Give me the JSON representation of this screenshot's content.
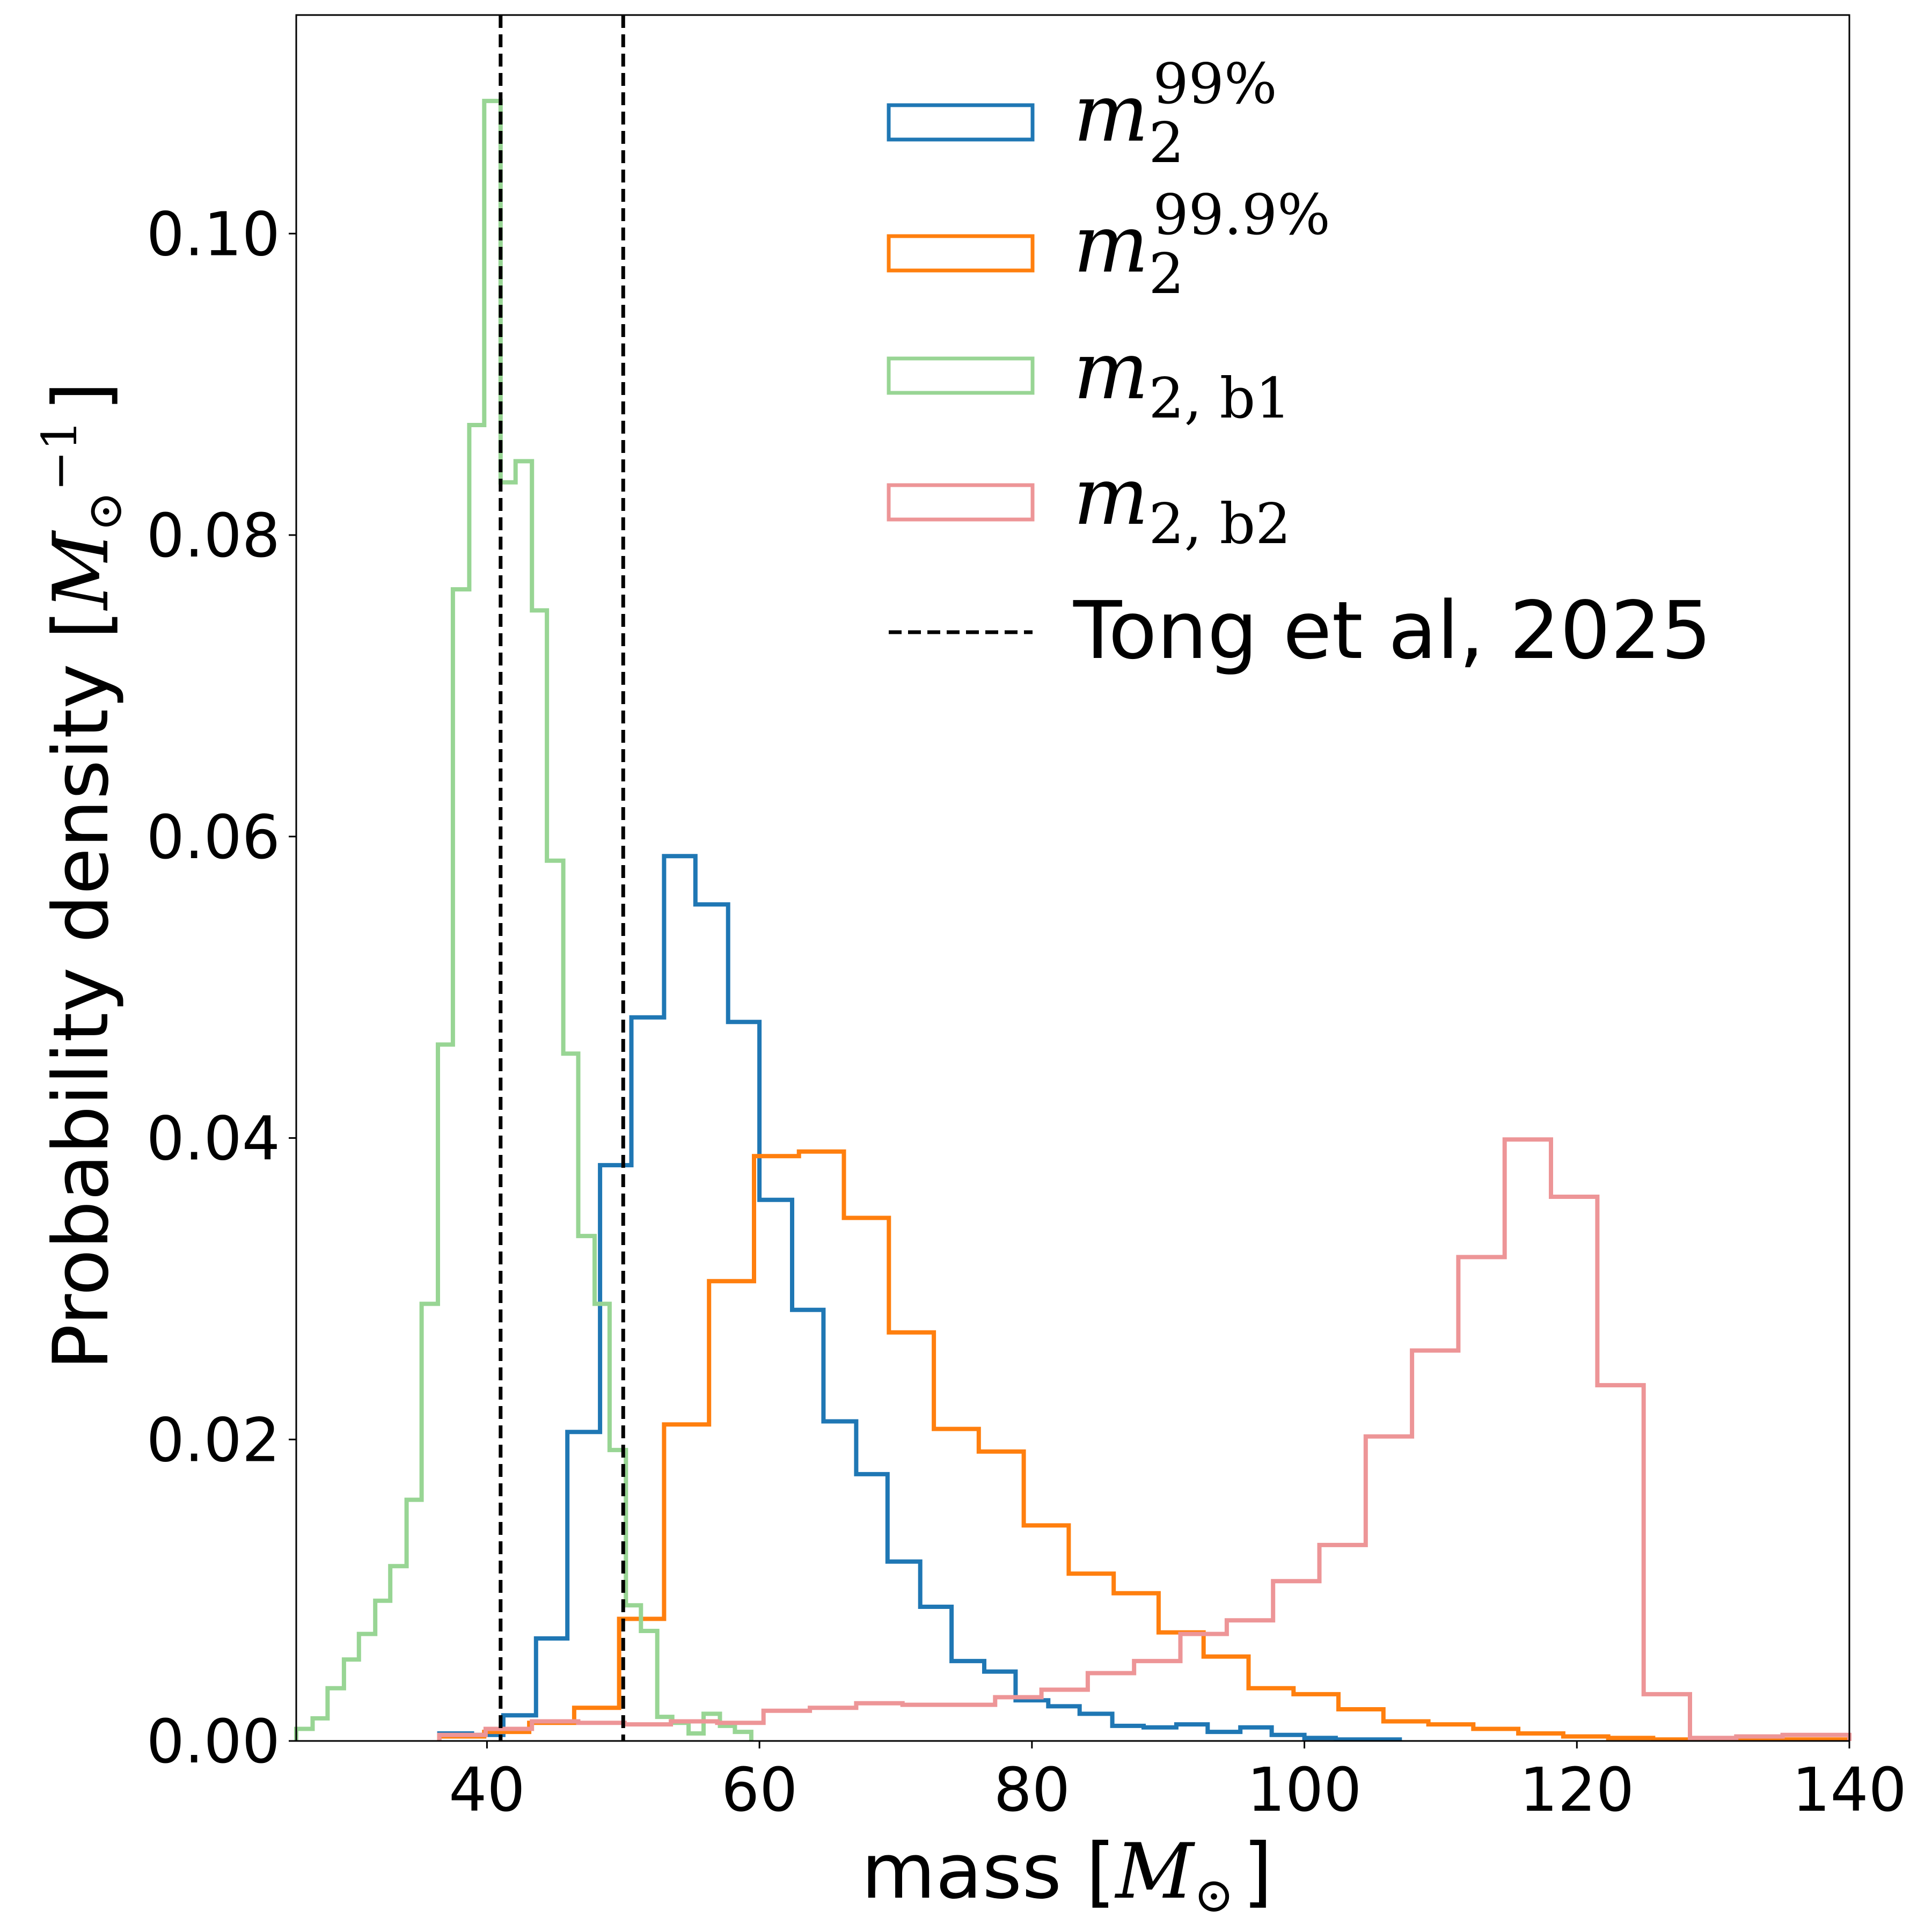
{
  "chart_data": {
    "type": "histogram-step",
    "title": "",
    "xlabel": {
      "prefix": "mass [",
      "symbol": "M",
      "subscript": "⊙",
      "suffix": "]"
    },
    "ylabel": {
      "prefix": "Probability density [",
      "symbol": "M",
      "subscript": "⊙",
      "superscript": "−1",
      "suffix": "]"
    },
    "xlim": [
      26,
      140
    ],
    "ylim": [
      0,
      0.1145
    ],
    "xticks": [
      {
        "value": 40,
        "label": "40"
      },
      {
        "value": 60,
        "label": "60"
      },
      {
        "value": 80,
        "label": "80"
      },
      {
        "value": 100,
        "label": "100"
      },
      {
        "value": 120,
        "label": "120"
      },
      {
        "value": 140,
        "label": "140"
      }
    ],
    "yticks": [
      {
        "value": 0.0,
        "label": "0.00"
      },
      {
        "value": 0.02,
        "label": "0.02"
      },
      {
        "value": 0.04,
        "label": "0.04"
      },
      {
        "value": 0.06,
        "label": "0.06"
      },
      {
        "value": 0.08,
        "label": "0.08"
      },
      {
        "value": 0.1,
        "label": "0.10"
      }
    ],
    "grid": false,
    "legend_position": "upper-right",
    "series": [
      {
        "name": "m2_99",
        "legend": {
          "base": "m",
          "sub": "2",
          "sup": "99%"
        },
        "color": "#1f77b4",
        "edges": [
          36.5,
          38.9,
          41.2,
          43.6,
          45.9,
          48.3,
          50.6,
          53.0,
          55.3,
          57.7,
          60.0,
          62.4,
          64.7,
          67.1,
          69.4,
          71.8,
          74.1,
          76.5,
          78.8,
          81.2,
          83.5,
          85.9,
          88.2,
          90.6,
          92.9,
          95.3,
          97.6,
          100.0,
          102.3,
          104.7,
          107.0
        ],
        "values": [
          0.0005,
          0.0004,
          0.0017,
          0.0068,
          0.0205,
          0.0382,
          0.048,
          0.0587,
          0.0555,
          0.0477,
          0.0359,
          0.0286,
          0.0212,
          0.0177,
          0.0119,
          0.0089,
          0.0053,
          0.0046,
          0.0027,
          0.0023,
          0.0018,
          0.001,
          0.0009,
          0.0011,
          0.0006,
          0.0009,
          0.0004,
          0.0002,
          0.0001,
          0.0001
        ]
      },
      {
        "name": "m2_99.9",
        "legend": {
          "base": "m",
          "sub": "2",
          "sup": "99.9%"
        },
        "color": "#ff7f0e",
        "edges": [
          36.5,
          39.8,
          43.1,
          46.4,
          49.7,
          53.0,
          56.3,
          59.6,
          62.9,
          66.2,
          69.5,
          72.8,
          76.1,
          79.4,
          82.7,
          86.0,
          89.3,
          92.6,
          95.9,
          99.2,
          102.5,
          105.8,
          109.1,
          112.4,
          115.7,
          119.0,
          122.3,
          125.6,
          128.9,
          132.2,
          135.5,
          140.0
        ],
        "values": [
          0.0003,
          0.0006,
          0.0012,
          0.0022,
          0.0081,
          0.021,
          0.0305,
          0.0388,
          0.0391,
          0.0347,
          0.0271,
          0.0207,
          0.0192,
          0.0143,
          0.0111,
          0.0098,
          0.0072,
          0.0056,
          0.0035,
          0.0031,
          0.0021,
          0.0013,
          0.0011,
          0.0008,
          0.0005,
          0.0003,
          0.0002,
          0.0001,
          0.0001,
          0.0001,
          0.0001
        ]
      },
      {
        "name": "m2_b1",
        "legend": {
          "base": "m",
          "sub": "2, b1"
        },
        "color": "#98d594",
        "edges": [
          26.0,
          27.2,
          28.3,
          29.5,
          30.6,
          31.8,
          32.9,
          34.1,
          35.2,
          36.4,
          37.5,
          38.7,
          39.8,
          41.0,
          42.1,
          43.3,
          44.4,
          45.6,
          46.7,
          47.9,
          49.0,
          50.2,
          51.3,
          52.5,
          53.6,
          54.8,
          55.9,
          57.1,
          58.2,
          59.4
        ],
        "values": [
          0.0008,
          0.0015,
          0.0035,
          0.0054,
          0.0071,
          0.0093,
          0.0116,
          0.016,
          0.029,
          0.0462,
          0.0764,
          0.0873,
          0.1088,
          0.0835,
          0.0849,
          0.075,
          0.0584,
          0.0456,
          0.0335,
          0.029,
          0.0193,
          0.009,
          0.0073,
          0.0016,
          0.0012,
          0.0005,
          0.0018,
          0.001,
          0.0006
        ]
      },
      {
        "name": "m2_b2",
        "legend": {
          "base": "m",
          "sub": "2, b2"
        },
        "color": "#ed9597",
        "edges": [
          36.5,
          39.9,
          43.3,
          46.7,
          50.1,
          53.5,
          56.9,
          60.3,
          63.7,
          67.1,
          70.5,
          73.9,
          77.3,
          80.7,
          84.1,
          87.5,
          90.9,
          94.3,
          97.7,
          101.1,
          104.5,
          107.9,
          111.3,
          114.7,
          118.1,
          121.5,
          124.9,
          128.3,
          131.7,
          135.1,
          140.0
        ],
        "values": [
          0.0004,
          0.0008,
          0.0013,
          0.0012,
          0.0011,
          0.0013,
          0.0012,
          0.002,
          0.0022,
          0.0025,
          0.0024,
          0.0024,
          0.0029,
          0.0034,
          0.0045,
          0.0053,
          0.0071,
          0.008,
          0.0106,
          0.013,
          0.0202,
          0.0259,
          0.0321,
          0.0399,
          0.0361,
          0.0236,
          0.0031,
          0.0002,
          0.0003,
          0.0004
        ]
      }
    ],
    "reference_lines": {
      "legend_label": "Tong et al, 2025",
      "color": "#000000",
      "style": "dashed",
      "x_values": [
        41.0,
        50.0
      ]
    }
  }
}
